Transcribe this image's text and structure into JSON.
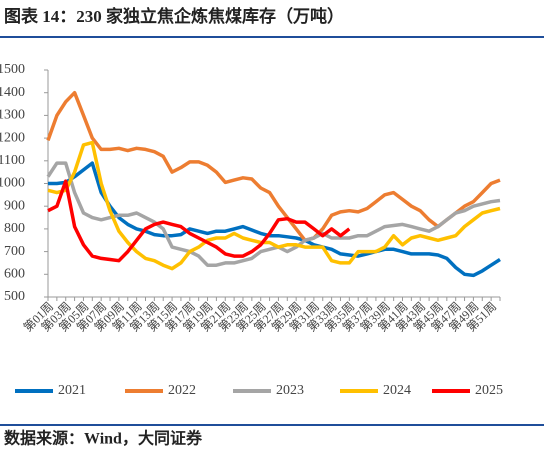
{
  "chart_data": {
    "type": "line",
    "title": "图表 14：230 家独立焦企炼焦煤库存（万吨）",
    "source": "数据来源：Wind，大同证券",
    "categories": [
      "第01周",
      null,
      "第03周",
      null,
      "第05周",
      null,
      "第07周",
      null,
      "第09周",
      null,
      "第11周",
      null,
      "第13周",
      null,
      "第15周",
      null,
      "第17周",
      null,
      "第19周",
      null,
      "第21周",
      null,
      "第23周",
      null,
      "第25周",
      null,
      "第27周",
      null,
      "第29周",
      null,
      "第31周",
      null,
      "第33周",
      null,
      "第35周",
      null,
      "第37周",
      null,
      "第39周",
      null,
      "第41周",
      null,
      "第43周",
      null,
      "第45周",
      null,
      "第47周",
      null,
      "第49周",
      null,
      "第51周",
      null
    ],
    "series": [
      {
        "name": "2021",
        "color": "#0070c0",
        "values": [
          1000,
          1000,
          1005,
          1030,
          1060,
          1090,
          960,
          900,
          850,
          820,
          800,
          790,
          775,
          770,
          770,
          775,
          800,
          790,
          780,
          790,
          790,
          800,
          810,
          795,
          780,
          770,
          770,
          765,
          760,
          750,
          730,
          720,
          710,
          690,
          685,
          680,
          690,
          700,
          710,
          710,
          700,
          690,
          690,
          690,
          685,
          670,
          630,
          600,
          595,
          615,
          640,
          665
        ]
      },
      {
        "name": "2022",
        "color": "#ed7d31",
        "values": [
          1190,
          1300,
          1360,
          1400,
          1300,
          1200,
          1150,
          1150,
          1155,
          1145,
          1155,
          1150,
          1140,
          1120,
          1050,
          1070,
          1095,
          1095,
          1080,
          1050,
          1005,
          1015,
          1025,
          1020,
          980,
          960,
          900,
          850,
          800,
          750,
          760,
          800,
          860,
          875,
          880,
          875,
          890,
          920,
          950,
          960,
          930,
          900,
          880,
          840,
          810,
          840,
          870,
          900,
          920,
          960,
          1000,
          1015
        ]
      },
      {
        "name": "2023",
        "color": "#a5a5a5",
        "values": [
          1030,
          1090,
          1090,
          960,
          870,
          850,
          840,
          850,
          860,
          860,
          870,
          850,
          830,
          800,
          720,
          710,
          700,
          680,
          640,
          640,
          650,
          650,
          660,
          670,
          700,
          710,
          720,
          700,
          720,
          750,
          760,
          780,
          760,
          760,
          760,
          770,
          770,
          790,
          810,
          815,
          820,
          810,
          800,
          790,
          810,
          840,
          870,
          880,
          900,
          910,
          920,
          925
        ]
      },
      {
        "name": "2024",
        "color": "#ffc000",
        "values": [
          970,
          960,
          970,
          1050,
          1170,
          1180,
          1000,
          880,
          790,
          740,
          700,
          670,
          660,
          640,
          625,
          650,
          700,
          720,
          750,
          760,
          760,
          780,
          760,
          750,
          740,
          740,
          720,
          730,
          730,
          720,
          720,
          720,
          660,
          650,
          650,
          700,
          700,
          700,
          720,
          770,
          730,
          760,
          770,
          760,
          750,
          760,
          770,
          810,
          840,
          870,
          880,
          890
        ]
      },
      {
        "name": "2025",
        "color": "#ff0000",
        "values": [
          880,
          900,
          1010,
          810,
          730,
          680,
          670,
          665,
          660,
          700,
          750,
          800,
          820,
          830,
          820,
          810,
          780,
          760,
          740,
          720,
          690,
          680,
          680,
          700,
          730,
          780,
          840,
          845,
          830,
          830,
          800,
          770,
          800,
          770,
          800,
          null,
          null,
          null,
          null,
          null,
          null,
          null,
          null,
          null,
          null,
          null,
          null,
          null,
          null,
          null,
          null,
          null
        ]
      }
    ],
    "ylim": [
      500,
      1500
    ],
    "yticks": [
      500,
      600,
      700,
      800,
      900,
      1000,
      1100,
      1200,
      1300,
      1400,
      1500
    ]
  }
}
